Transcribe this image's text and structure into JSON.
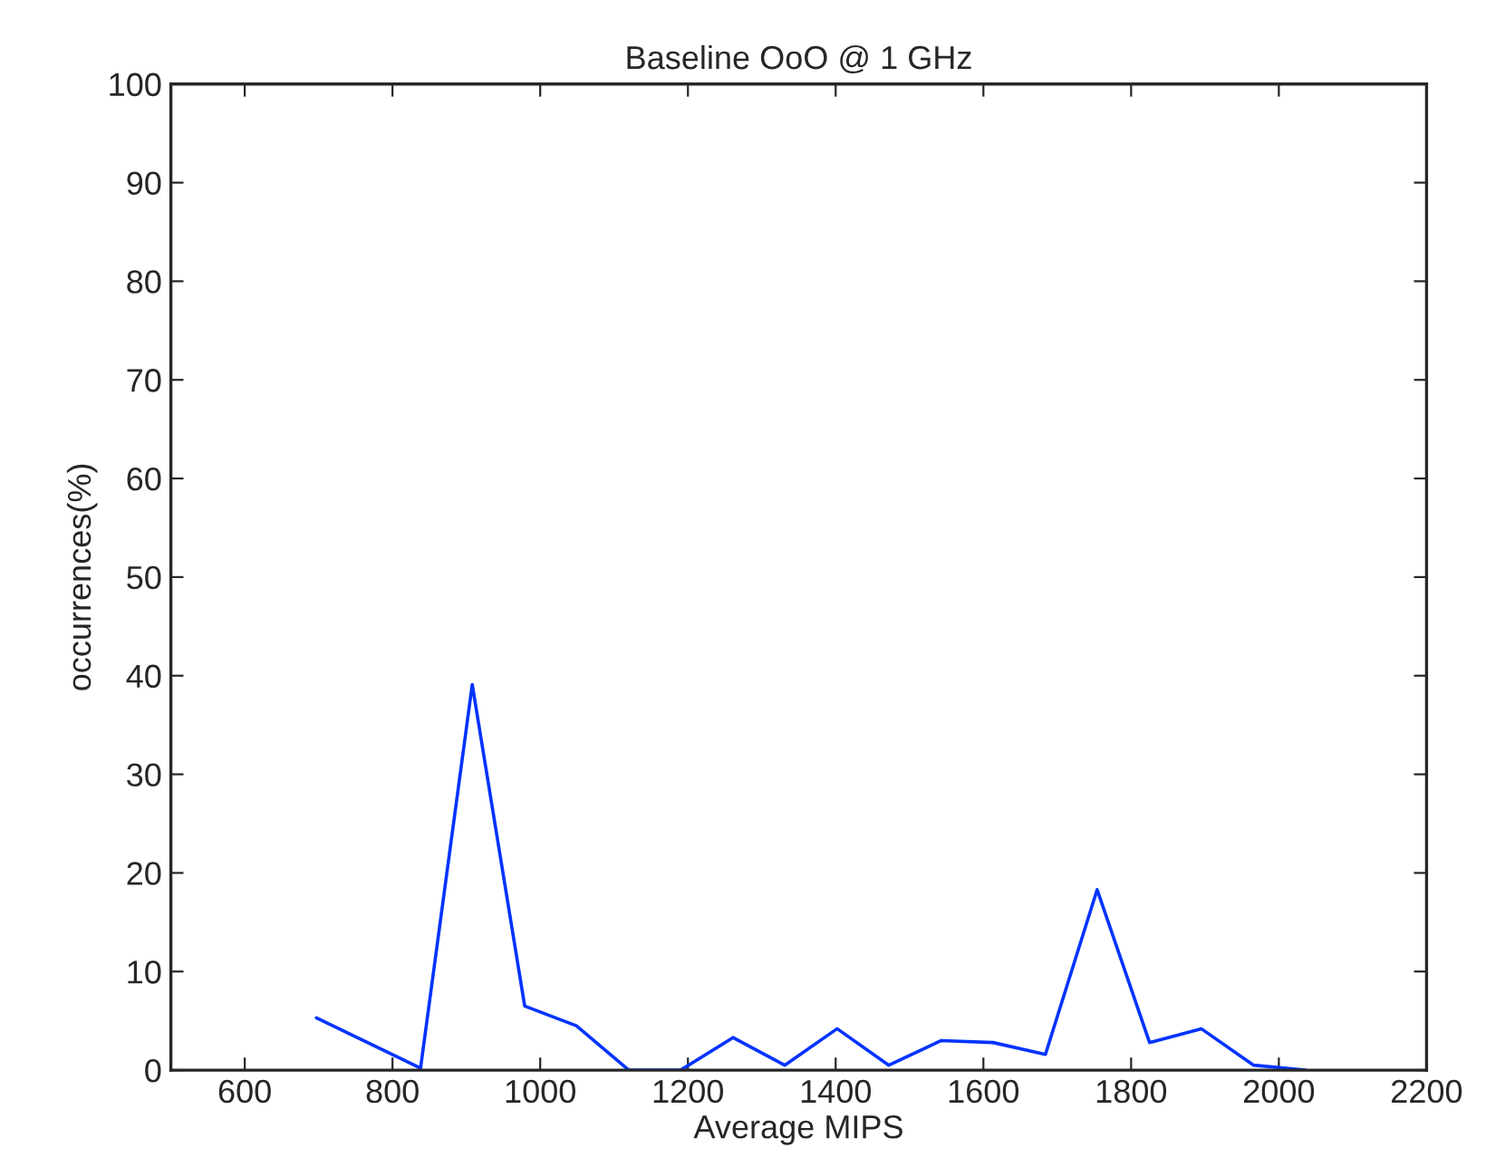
{
  "chart_data": {
    "type": "line",
    "title": "Baseline OoO @ 1 GHz",
    "xlabel": "Average MIPS",
    "ylabel": "occurrences(%)",
    "series": [
      {
        "color": "#0033ff",
        "x": [
          697,
          838,
          908,
          979,
          1049,
          1120,
          1190,
          1261,
          1331,
          1402,
          1472,
          1543,
          1613,
          1684,
          1754,
          1825,
          1895,
          1966,
          2036
        ],
        "values": [
          5.3,
          0.2,
          39.1,
          6.5,
          4.5,
          0,
          0,
          3.3,
          0.5,
          4.2,
          0.5,
          3.0,
          2.8,
          1.6,
          18.3,
          2.8,
          4.2,
          0.5,
          0
        ]
      }
    ],
    "xlim": [
      500,
      2200
    ],
    "xticks": [
      600,
      800,
      1000,
      1200,
      1400,
      1600,
      1800,
      2000,
      2200
    ],
    "ylim": [
      0,
      100
    ],
    "yticks": [
      0,
      10,
      20,
      30,
      40,
      50,
      60,
      70,
      80,
      90,
      100
    ],
    "grid": false,
    "legend": false,
    "marker": "none",
    "line_style": "solid"
  }
}
